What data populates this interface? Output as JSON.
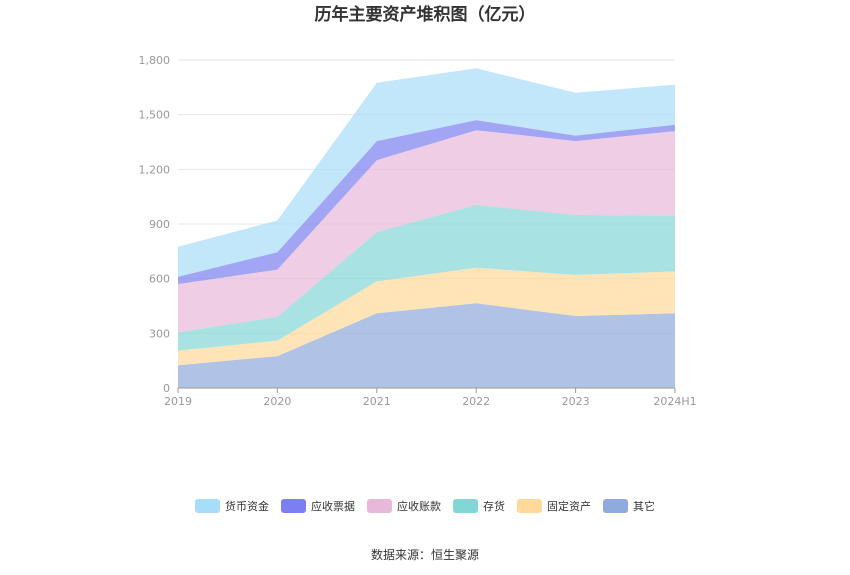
{
  "chart_data": {
    "type": "area",
    "stacked": true,
    "title": "历年主要资产堆积图（亿元）",
    "source": "数据来源：恒生聚源",
    "categories": [
      "2019",
      "2020",
      "2021",
      "2022",
      "2023",
      "2024H1"
    ],
    "yticks": [
      "0",
      "300",
      "600",
      "900",
      "1,200",
      "1,500",
      "1,800"
    ],
    "ylim": [
      0,
      1800
    ],
    "grid": true,
    "legend_position": "bottom",
    "series": [
      {
        "name": "其它",
        "color": "#8FAADC",
        "values": [
          125,
          175,
          410,
          465,
          395,
          410
        ]
      },
      {
        "name": "固定资产",
        "color": "#FFD99A",
        "values": [
          80,
          85,
          175,
          195,
          225,
          230
        ]
      },
      {
        "name": "存货",
        "color": "#84D6D6",
        "values": [
          100,
          130,
          270,
          345,
          330,
          305
        ]
      },
      {
        "name": "应收账款",
        "color": "#E8B8D8",
        "values": [
          265,
          260,
          395,
          410,
          405,
          465
        ]
      },
      {
        "name": "应收票据",
        "color": "#7B7FF0",
        "values": [
          40,
          95,
          105,
          55,
          30,
          35
        ]
      },
      {
        "name": "货币资金",
        "color": "#A8DDF8",
        "values": [
          165,
          175,
          320,
          285,
          235,
          220
        ]
      }
    ],
    "legend_order": [
      "货币资金",
      "应收票据",
      "应收账款",
      "存货",
      "固定资产",
      "其它"
    ]
  }
}
